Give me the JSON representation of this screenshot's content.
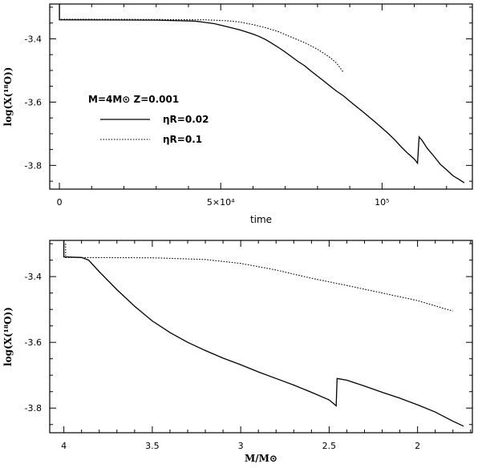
{
  "chart_data": [
    {
      "type": "line",
      "xlabel": "time",
      "ylabel": "log(X(¹⁸O))",
      "xlim": [
        -3000,
        128000
      ],
      "ylim": [
        -3.875,
        -3.29
      ],
      "xticks": [
        {
          "value": 0,
          "label": "0"
        },
        {
          "value": 50000,
          "label": "5×10⁴"
        },
        {
          "value": 100000,
          "label": "10⁵"
        }
      ],
      "yticks": [
        {
          "value": -3.4,
          "label": "-3.4"
        },
        {
          "value": -3.6,
          "label": "-3.6"
        },
        {
          "value": -3.8,
          "label": "-3.8"
        }
      ],
      "legend": {
        "header": "M=4M⊙  Z=0.001",
        "entries": [
          {
            "label": "ηR=0.02",
            "style": "solid"
          },
          {
            "label": "ηR=0.1",
            "style": "dotted"
          }
        ]
      },
      "series": [
        {
          "style": "solid",
          "points": [
            [
              0,
              -3.29
            ],
            [
              0,
              -3.34
            ],
            [
              30000,
              -3.341
            ],
            [
              42000,
              -3.344
            ],
            [
              48000,
              -3.352
            ],
            [
              52000,
              -3.362
            ],
            [
              56000,
              -3.372
            ],
            [
              60000,
              -3.385
            ],
            [
              62000,
              -3.393
            ],
            [
              64000,
              -3.403
            ],
            [
              66000,
              -3.415
            ],
            [
              68000,
              -3.428
            ],
            [
              70000,
              -3.442
            ],
            [
              72000,
              -3.457
            ],
            [
              74000,
              -3.472
            ],
            [
              76000,
              -3.485
            ],
            [
              78000,
              -3.502
            ],
            [
              80000,
              -3.518
            ],
            [
              82000,
              -3.534
            ],
            [
              84000,
              -3.55
            ],
            [
              86000,
              -3.566
            ],
            [
              88000,
              -3.58
            ],
            [
              90000,
              -3.597
            ],
            [
              92000,
              -3.614
            ],
            [
              94000,
              -3.63
            ],
            [
              96000,
              -3.647
            ],
            [
              98000,
              -3.664
            ],
            [
              100000,
              -3.682
            ],
            [
              102000,
              -3.7
            ],
            [
              104000,
              -3.72
            ],
            [
              106000,
              -3.742
            ],
            [
              108000,
              -3.762
            ],
            [
              110000,
              -3.78
            ],
            [
              111000,
              -3.793
            ],
            [
              111500,
              -3.71
            ],
            [
              112500,
              -3.722
            ],
            [
              114000,
              -3.746
            ],
            [
              116000,
              -3.77
            ],
            [
              118000,
              -3.796
            ],
            [
              120000,
              -3.814
            ],
            [
              122000,
              -3.833
            ],
            [
              124000,
              -3.845
            ],
            [
              125500,
              -3.855
            ]
          ]
        },
        {
          "style": "dotted",
          "points": [
            [
              0,
              -3.3
            ],
            [
              0,
              -3.338
            ],
            [
              30000,
              -3.339
            ],
            [
              45000,
              -3.34
            ],
            [
              52000,
              -3.343
            ],
            [
              56000,
              -3.347
            ],
            [
              60000,
              -3.355
            ],
            [
              64000,
              -3.365
            ],
            [
              68000,
              -3.378
            ],
            [
              72000,
              -3.395
            ],
            [
              76000,
              -3.412
            ],
            [
              80000,
              -3.433
            ],
            [
              82000,
              -3.446
            ],
            [
              84000,
              -3.46
            ],
            [
              86000,
              -3.478
            ],
            [
              88000,
              -3.505
            ]
          ]
        }
      ]
    },
    {
      "type": "line",
      "xlabel": "M/M⊙",
      "ylabel": "log(X(¹⁸O))",
      "xlim": [
        4.08,
        1.69
      ],
      "ylim": [
        -3.875,
        -3.29
      ],
      "xticks": [
        {
          "value": 4,
          "label": "4"
        },
        {
          "value": 3.5,
          "label": "3.5"
        },
        {
          "value": 3,
          "label": "3"
        },
        {
          "value": 2.5,
          "label": "2.5"
        },
        {
          "value": 2,
          "label": "2"
        }
      ],
      "yticks": [
        {
          "value": -3.4,
          "label": "-3.4"
        },
        {
          "value": -3.6,
          "label": "-3.6"
        },
        {
          "value": -3.8,
          "label": "-3.8"
        }
      ],
      "series": [
        {
          "style": "solid",
          "points": [
            [
              4.0,
              -3.29
            ],
            [
              4.0,
              -3.34
            ],
            [
              3.9,
              -3.342
            ],
            [
              3.86,
              -3.35
            ],
            [
              3.8,
              -3.385
            ],
            [
              3.7,
              -3.44
            ],
            [
              3.6,
              -3.49
            ],
            [
              3.5,
              -3.535
            ],
            [
              3.4,
              -3.57
            ],
            [
              3.3,
              -3.6
            ],
            [
              3.2,
              -3.625
            ],
            [
              3.1,
              -3.648
            ],
            [
              3.0,
              -3.668
            ],
            [
              2.9,
              -3.69
            ],
            [
              2.8,
              -3.71
            ],
            [
              2.7,
              -3.73
            ],
            [
              2.6,
              -3.752
            ],
            [
              2.5,
              -3.775
            ],
            [
              2.46,
              -3.793
            ],
            [
              2.455,
              -3.71
            ],
            [
              2.4,
              -3.715
            ],
            [
              2.3,
              -3.733
            ],
            [
              2.2,
              -3.752
            ],
            [
              2.1,
              -3.77
            ],
            [
              2.0,
              -3.79
            ],
            [
              1.9,
              -3.812
            ],
            [
              1.8,
              -3.84
            ],
            [
              1.74,
              -3.855
            ]
          ]
        },
        {
          "style": "dotted",
          "points": [
            [
              3.99,
              -3.3
            ],
            [
              3.99,
              -3.342
            ],
            [
              3.5,
              -3.343
            ],
            [
              3.2,
              -3.348
            ],
            [
              3.0,
              -3.36
            ],
            [
              2.8,
              -3.38
            ],
            [
              2.6,
              -3.405
            ],
            [
              2.4,
              -3.427
            ],
            [
              2.2,
              -3.45
            ],
            [
              2.0,
              -3.473
            ],
            [
              1.8,
              -3.505
            ]
          ]
        }
      ]
    }
  ]
}
